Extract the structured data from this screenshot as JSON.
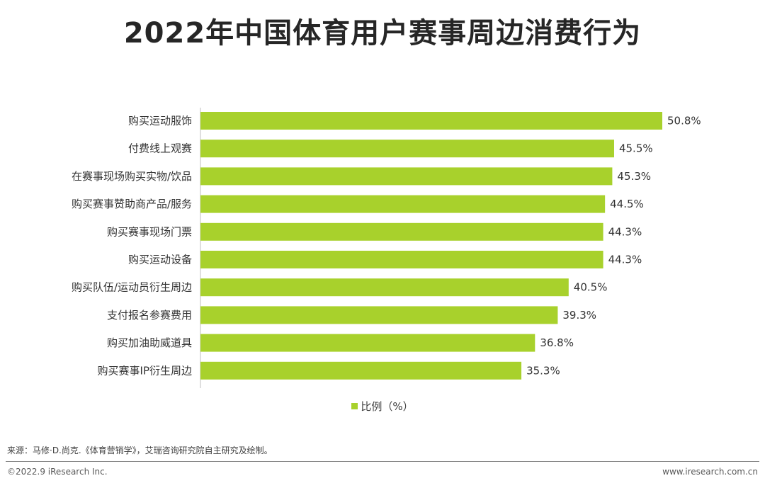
{
  "title": "2022年中国体育用户赛事周边消费行为",
  "legend": {
    "label": "比例（%）"
  },
  "source": "来源：马修·D.尚克.《体育营销学》，艾瑞咨询研究院自主研究及绘制。",
  "footer": {
    "copyright": "©2022.9 iResearch Inc.",
    "website": "www.iresearch.com.cn"
  },
  "colors": {
    "bar": "#a8d12c",
    "axis": "#bfbfbf",
    "text": "#333333"
  },
  "chart_data": {
    "type": "bar",
    "orientation": "horizontal",
    "categories": [
      "购买运动服饰",
      "付费线上观赛",
      "在赛事现场购买实物/饮品",
      "购买赛事赞助商产品/服务",
      "购买赛事现场门票",
      "购买运动设备",
      "购买队伍/运动员衍生周边",
      "支付报名参赛费用",
      "购买加油助威道具",
      "购买赛事IP衍生周边"
    ],
    "series": [
      {
        "name": "比例（%）",
        "values": [
          50.8,
          45.5,
          45.3,
          44.5,
          44.3,
          44.3,
          40.5,
          39.3,
          36.8,
          35.3
        ],
        "labels": [
          "50.8%",
          "45.5%",
          "45.3%",
          "44.5%",
          "44.3%",
          "44.3%",
          "40.5%",
          "39.3%",
          "36.8%",
          "35.3%"
        ]
      }
    ],
    "xlim": [
      0,
      50.8
    ],
    "grid": false,
    "legend_position": "bottom"
  }
}
